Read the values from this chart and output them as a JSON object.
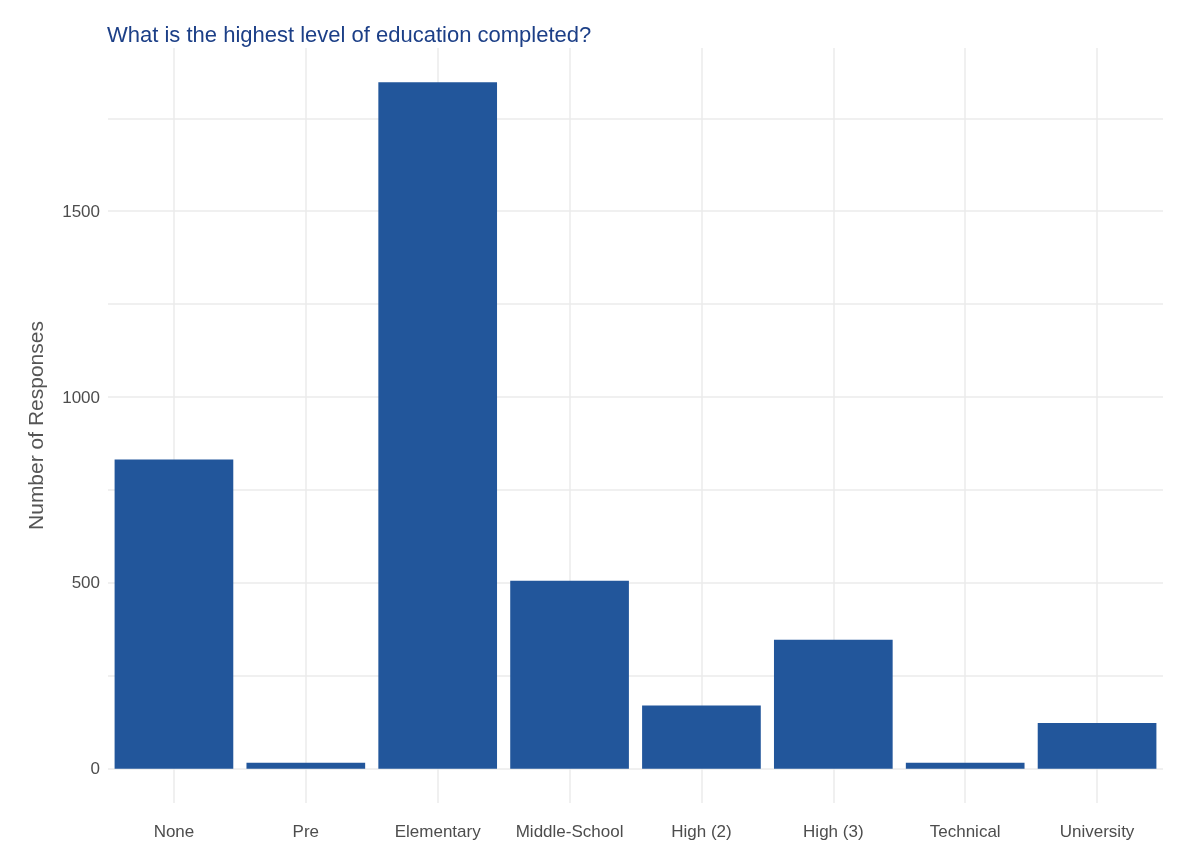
{
  "chart_data": {
    "type": "bar",
    "title": "What is the highest level of education completed?",
    "ylabel": "Number of Responses",
    "categories": [
      "None",
      "Pre",
      "Elementary",
      "Middle-School",
      "High (2)",
      "High (3)",
      "Technical",
      "University"
    ],
    "values": [
      832,
      16,
      1847,
      506,
      170,
      347,
      16,
      123
    ],
    "color": "#22569b",
    "ylim": [
      -92,
      1939
    ],
    "yticks": [
      0,
      {
        "value": 250,
        "label": null
      },
      500,
      {
        "value": 750,
        "label": null
      },
      1000,
      {
        "value": 1250,
        "label": null
      },
      1500,
      {
        "value": 1750,
        "label": null
      }
    ],
    "grid": true
  }
}
